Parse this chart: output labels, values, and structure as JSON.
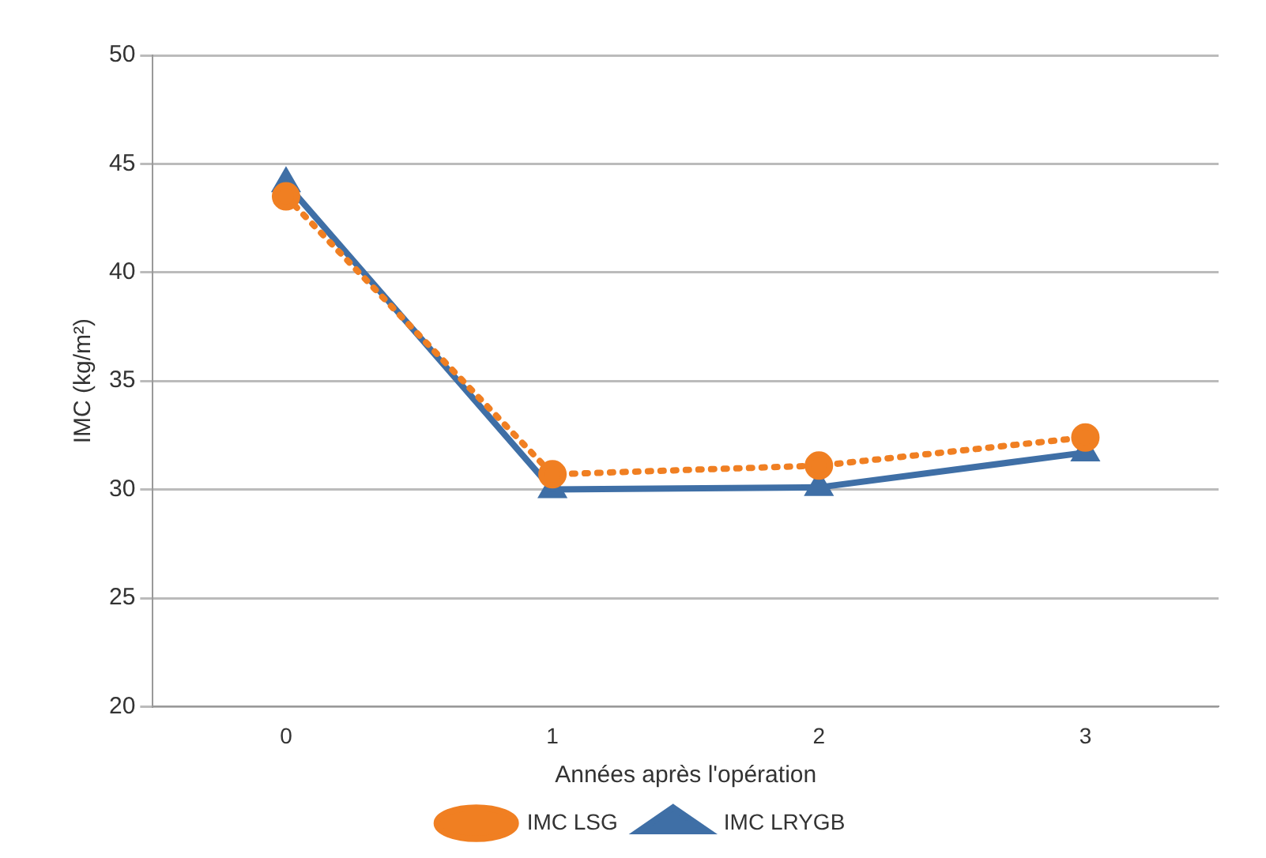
{
  "chart_data": {
    "type": "line",
    "xlabel": "Années après l'opération",
    "ylabel": "IMC (kg/m²)",
    "categories": [
      "0",
      "1",
      "2",
      "3"
    ],
    "series": [
      {
        "name": "IMC LSG",
        "color": "#f07f22",
        "values": [
          43.5,
          30.7,
          31.1,
          32.4
        ],
        "marker": "circle",
        "line_style": "dotted"
      },
      {
        "name": "IMC LRYGB",
        "color": "#3f6fa6",
        "values": [
          44.1,
          30.0,
          30.1,
          31.7
        ],
        "marker": "triangle",
        "line_style": "solid"
      }
    ],
    "ylim": [
      20,
      50
    ],
    "yticks": [
      20,
      25,
      30,
      35,
      40,
      45,
      50
    ],
    "grid": "y",
    "legend": "bottom"
  }
}
